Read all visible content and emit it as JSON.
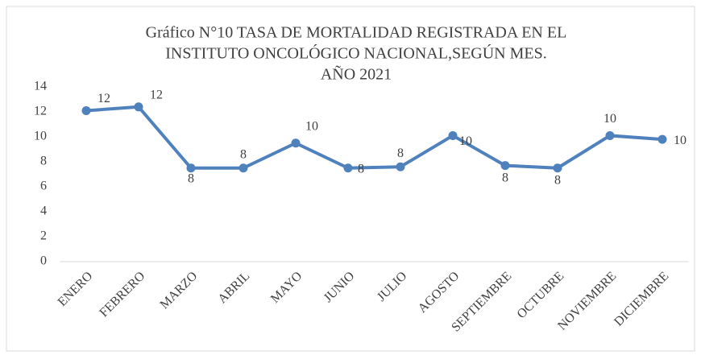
{
  "chart_data": {
    "type": "line",
    "title": [
      "Gráfico N°10 TASA DE MORTALIDAD REGISTRADA EN EL",
      "INSTITUTO ONCOLÓGICO NACIONAL,SEGÚN MES.",
      "AÑO 2021"
    ],
    "categories": [
      "ENERO",
      "FEBRERO",
      "MARZO",
      "ABRIL",
      "MAYO",
      "JUNIO",
      "JULIO",
      "AGOSTO",
      "SEPTIEMBRE",
      "OCTUBRE",
      "NOVIEMBRE",
      "DICIEMBRE"
    ],
    "values": [
      12.1,
      12.4,
      7.5,
      7.5,
      9.5,
      7.5,
      7.6,
      10.1,
      7.7,
      7.5,
      10.1,
      9.8
    ],
    "value_labels": [
      "12",
      "12",
      "8",
      "8",
      "10",
      "8",
      "8",
      "10",
      "8",
      "8",
      "10",
      "10"
    ],
    "color": "#4f81bd",
    "ylim": [
      0,
      14
    ],
    "yticks": [
      0,
      2,
      4,
      6,
      8,
      10,
      12,
      14
    ],
    "grid": false
  }
}
